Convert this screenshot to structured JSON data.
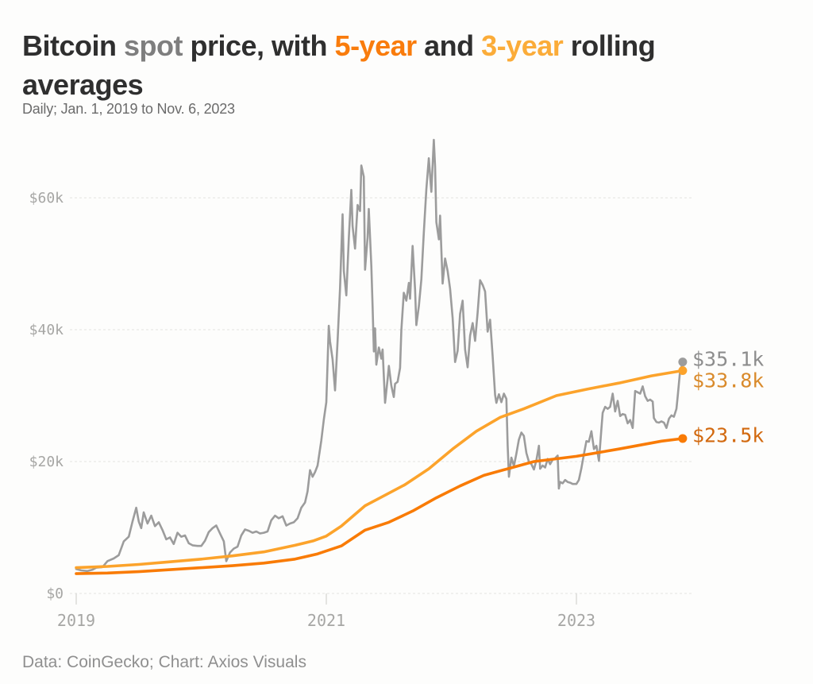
{
  "title": {
    "lines": [
      [
        {
          "text": "Bitcoin ",
          "color": "#2F2F2F"
        },
        {
          "text": "spot",
          "color": "#7E7E7E"
        },
        {
          "text": " price, with ",
          "color": "#2F2F2F"
        },
        {
          "text": "5-year",
          "color": "#F97C0C"
        },
        {
          "text": " and ",
          "color": "#2F2F2F"
        },
        {
          "text": "3-year",
          "color": "#FBAC39"
        },
        {
          "text": " rolling",
          "color": "#2F2F2F"
        }
      ],
      [
        {
          "text": "averages",
          "color": "#2F2F2F"
        }
      ]
    ]
  },
  "subtitle": "Daily; Jan. 1, 2019 to Nov. 6, 2023",
  "footer": "Data: CoinGecko; Chart: Axios Visuals",
  "colors": {
    "background": "#FDFDFC",
    "gridline": "#E8E8E5",
    "axis_label": "#A6A6A4",
    "tick": "#DBDBD8",
    "spot": "#9C9C9C",
    "three_year": "#FCA32B",
    "five_year": "#F97B05"
  },
  "chart_data": {
    "type": "line",
    "title": "Bitcoin spot price, with 5-year and 3-year rolling averages",
    "subtitle": "Daily; Jan. 1, 2019 to Nov. 6, 2023",
    "source": "Data: CoinGecko; Chart: Axios Visuals",
    "x_unit": "year (decimal date)",
    "y_unit": "USD thousands",
    "xlim": [
      2019.0,
      2023.92
    ],
    "ylim": [
      0,
      69
    ],
    "grid": "horizontal dashed, on",
    "legend": "inline in title (colored words)",
    "x_ticks": [
      {
        "value": 2019,
        "label": "2019"
      },
      {
        "value": 2021,
        "label": "2021"
      },
      {
        "value": 2023,
        "label": "2023"
      }
    ],
    "y_ticks": [
      {
        "value": 0,
        "label": "$0"
      },
      {
        "value": 20,
        "label": "$20k"
      },
      {
        "value": 40,
        "label": "$40k"
      },
      {
        "value": 60,
        "label": "$60k"
      }
    ],
    "series": [
      {
        "id": "spot",
        "name": "Bitcoin spot price (daily)",
        "color": "#9C9C9C",
        "label_color": "#8D8D8D",
        "width": 2.6,
        "end_label": "$35.1k",
        "end_value_k": 35.1,
        "points": [
          [
            2019.0,
            3.7
          ],
          [
            2019.04,
            3.5
          ],
          [
            2019.09,
            3.4
          ],
          [
            2019.13,
            3.6
          ],
          [
            2019.16,
            3.9
          ],
          [
            2019.21,
            4.0
          ],
          [
            2019.25,
            4.9
          ],
          [
            2019.3,
            5.3
          ],
          [
            2019.34,
            5.8
          ],
          [
            2019.38,
            7.9
          ],
          [
            2019.42,
            8.6
          ],
          [
            2019.45,
            10.9
          ],
          [
            2019.48,
            13.0
          ],
          [
            2019.5,
            10.9
          ],
          [
            2019.52,
            9.9
          ],
          [
            2019.54,
            12.3
          ],
          [
            2019.57,
            10.6
          ],
          [
            2019.6,
            11.8
          ],
          [
            2019.63,
            10.2
          ],
          [
            2019.66,
            10.8
          ],
          [
            2019.69,
            9.6
          ],
          [
            2019.72,
            8.2
          ],
          [
            2019.75,
            8.5
          ],
          [
            2019.78,
            7.5
          ],
          [
            2019.81,
            9.2
          ],
          [
            2019.84,
            8.6
          ],
          [
            2019.87,
            8.8
          ],
          [
            2019.9,
            7.6
          ],
          [
            2019.93,
            7.3
          ],
          [
            2019.97,
            7.2
          ],
          [
            2020.0,
            7.2
          ],
          [
            2020.03,
            8.0
          ],
          [
            2020.06,
            9.3
          ],
          [
            2020.09,
            9.9
          ],
          [
            2020.12,
            10.3
          ],
          [
            2020.15,
            9.1
          ],
          [
            2020.18,
            7.9
          ],
          [
            2020.2,
            4.9
          ],
          [
            2020.23,
            6.2
          ],
          [
            2020.26,
            6.8
          ],
          [
            2020.29,
            7.1
          ],
          [
            2020.32,
            8.8
          ],
          [
            2020.35,
            9.7
          ],
          [
            2020.38,
            9.5
          ],
          [
            2020.41,
            9.2
          ],
          [
            2020.44,
            9.4
          ],
          [
            2020.47,
            9.1
          ],
          [
            2020.5,
            9.2
          ],
          [
            2020.53,
            9.4
          ],
          [
            2020.56,
            11.1
          ],
          [
            2020.59,
            11.8
          ],
          [
            2020.62,
            11.4
          ],
          [
            2020.65,
            11.7
          ],
          [
            2020.68,
            10.3
          ],
          [
            2020.71,
            10.6
          ],
          [
            2020.74,
            10.8
          ],
          [
            2020.77,
            11.4
          ],
          [
            2020.8,
            13.0
          ],
          [
            2020.83,
            13.8
          ],
          [
            2020.85,
            15.5
          ],
          [
            2020.87,
            18.7
          ],
          [
            2020.89,
            17.7
          ],
          [
            2020.91,
            18.4
          ],
          [
            2020.93,
            19.4
          ],
          [
            2020.96,
            23.2
          ],
          [
            2020.98,
            26.4
          ],
          [
            2021.0,
            29.0
          ],
          [
            2021.02,
            40.6
          ],
          [
            2021.03,
            38.2
          ],
          [
            2021.05,
            35.5
          ],
          [
            2021.07,
            30.8
          ],
          [
            2021.09,
            38.3
          ],
          [
            2021.11,
            46.3
          ],
          [
            2021.13,
            57.5
          ],
          [
            2021.14,
            48.9
          ],
          [
            2021.16,
            45.2
          ],
          [
            2021.18,
            54.0
          ],
          [
            2021.2,
            61.2
          ],
          [
            2021.21,
            55.7
          ],
          [
            2021.23,
            52.3
          ],
          [
            2021.25,
            58.9
          ],
          [
            2021.27,
            58.0
          ],
          [
            2021.28,
            64.9
          ],
          [
            2021.3,
            63.2
          ],
          [
            2021.31,
            49.1
          ],
          [
            2021.33,
            54.0
          ],
          [
            2021.34,
            58.3
          ],
          [
            2021.36,
            49.7
          ],
          [
            2021.37,
            43.5
          ],
          [
            2021.38,
            36.7
          ],
          [
            2021.39,
            40.2
          ],
          [
            2021.4,
            34.7
          ],
          [
            2021.42,
            37.3
          ],
          [
            2021.44,
            35.6
          ],
          [
            2021.45,
            37.0
          ],
          [
            2021.47,
            28.9
          ],
          [
            2021.49,
            32.5
          ],
          [
            2021.5,
            34.5
          ],
          [
            2021.52,
            31.5
          ],
          [
            2021.54,
            29.8
          ],
          [
            2021.55,
            31.8
          ],
          [
            2021.57,
            32.1
          ],
          [
            2021.59,
            34.2
          ],
          [
            2021.6,
            39.9
          ],
          [
            2021.62,
            45.6
          ],
          [
            2021.64,
            44.4
          ],
          [
            2021.66,
            47.1
          ],
          [
            2021.67,
            44.7
          ],
          [
            2021.69,
            52.7
          ],
          [
            2021.71,
            46.1
          ],
          [
            2021.72,
            40.7
          ],
          [
            2021.74,
            43.6
          ],
          [
            2021.76,
            47.6
          ],
          [
            2021.78,
            54.7
          ],
          [
            2021.8,
            61.3
          ],
          [
            2021.82,
            66.0
          ],
          [
            2021.84,
            60.9
          ],
          [
            2021.86,
            68.8
          ],
          [
            2021.87,
            64.8
          ],
          [
            2021.88,
            56.3
          ],
          [
            2021.9,
            53.7
          ],
          [
            2021.91,
            57.3
          ],
          [
            2021.93,
            47.0
          ],
          [
            2021.95,
            50.8
          ],
          [
            2021.97,
            48.9
          ],
          [
            2021.99,
            46.2
          ],
          [
            2022.01,
            41.8
          ],
          [
            2022.03,
            35.1
          ],
          [
            2022.05,
            36.8
          ],
          [
            2022.07,
            42.4
          ],
          [
            2022.09,
            44.4
          ],
          [
            2022.11,
            37.0
          ],
          [
            2022.13,
            34.3
          ],
          [
            2022.15,
            39.1
          ],
          [
            2022.17,
            41.0
          ],
          [
            2022.19,
            38.3
          ],
          [
            2022.21,
            42.6
          ],
          [
            2022.23,
            47.5
          ],
          [
            2022.25,
            46.8
          ],
          [
            2022.27,
            45.8
          ],
          [
            2022.29,
            39.7
          ],
          [
            2022.31,
            41.5
          ],
          [
            2022.33,
            36.0
          ],
          [
            2022.35,
            30.1
          ],
          [
            2022.36,
            28.9
          ],
          [
            2022.38,
            30.2
          ],
          [
            2022.4,
            29.0
          ],
          [
            2022.42,
            30.3
          ],
          [
            2022.44,
            29.5
          ],
          [
            2022.45,
            22.5
          ],
          [
            2022.46,
            17.7
          ],
          [
            2022.48,
            20.6
          ],
          [
            2022.5,
            19.3
          ],
          [
            2022.52,
            21.2
          ],
          [
            2022.54,
            23.3
          ],
          [
            2022.56,
            24.4
          ],
          [
            2022.58,
            23.9
          ],
          [
            2022.6,
            21.3
          ],
          [
            2022.62,
            20.0
          ],
          [
            2022.64,
            19.6
          ],
          [
            2022.66,
            18.8
          ],
          [
            2022.68,
            20.2
          ],
          [
            2022.7,
            22.4
          ],
          [
            2022.71,
            18.9
          ],
          [
            2022.73,
            19.4
          ],
          [
            2022.75,
            19.1
          ],
          [
            2022.77,
            20.4
          ],
          [
            2022.79,
            19.6
          ],
          [
            2022.81,
            20.3
          ],
          [
            2022.83,
            20.5
          ],
          [
            2022.85,
            20.9
          ],
          [
            2022.86,
            15.9
          ],
          [
            2022.87,
            16.9
          ],
          [
            2022.89,
            16.7
          ],
          [
            2022.91,
            17.2
          ],
          [
            2022.93,
            16.9
          ],
          [
            2022.95,
            16.8
          ],
          [
            2022.97,
            16.6
          ],
          [
            2023.0,
            16.6
          ],
          [
            2023.02,
            17.2
          ],
          [
            2023.04,
            19.0
          ],
          [
            2023.06,
            21.1
          ],
          [
            2023.08,
            23.1
          ],
          [
            2023.1,
            23.0
          ],
          [
            2023.12,
            24.6
          ],
          [
            2023.14,
            21.9
          ],
          [
            2023.16,
            22.4
          ],
          [
            2023.18,
            20.1
          ],
          [
            2023.2,
            25.0
          ],
          [
            2023.21,
            27.4
          ],
          [
            2023.23,
            28.3
          ],
          [
            2023.25,
            28.0
          ],
          [
            2023.27,
            28.3
          ],
          [
            2023.29,
            30.3
          ],
          [
            2023.31,
            27.6
          ],
          [
            2023.33,
            29.2
          ],
          [
            2023.35,
            26.9
          ],
          [
            2023.37,
            27.2
          ],
          [
            2023.39,
            27.1
          ],
          [
            2023.41,
            25.8
          ],
          [
            2023.43,
            26.3
          ],
          [
            2023.45,
            25.1
          ],
          [
            2023.47,
            30.7
          ],
          [
            2023.49,
            30.5
          ],
          [
            2023.51,
            30.3
          ],
          [
            2023.53,
            31.4
          ],
          [
            2023.55,
            29.9
          ],
          [
            2023.57,
            29.2
          ],
          [
            2023.59,
            29.4
          ],
          [
            2023.61,
            29.1
          ],
          [
            2023.62,
            26.6
          ],
          [
            2023.64,
            26.0
          ],
          [
            2023.66,
            25.9
          ],
          [
            2023.68,
            26.1
          ],
          [
            2023.7,
            25.9
          ],
          [
            2023.72,
            25.1
          ],
          [
            2023.74,
            26.5
          ],
          [
            2023.76,
            27.0
          ],
          [
            2023.78,
            26.8
          ],
          [
            2023.8,
            28.0
          ],
          [
            2023.81,
            29.9
          ],
          [
            2023.83,
            33.9
          ],
          [
            2023.84,
            34.3
          ],
          [
            2023.85,
            35.1
          ]
        ]
      },
      {
        "id": "three-year-avg",
        "name": "3-year rolling average",
        "color": "#FCA32B",
        "label_color": "#D98A2B",
        "width": 3.6,
        "end_label": "$33.8k",
        "end_value_k": 33.8,
        "points": [
          [
            2019.0,
            3.9
          ],
          [
            2019.25,
            4.1
          ],
          [
            2019.5,
            4.4
          ],
          [
            2019.75,
            4.8
          ],
          [
            2020.0,
            5.2
          ],
          [
            2020.25,
            5.7
          ],
          [
            2020.5,
            6.3
          ],
          [
            2020.75,
            7.3
          ],
          [
            2020.9,
            8.0
          ],
          [
            2021.0,
            8.7
          ],
          [
            2021.12,
            10.2
          ],
          [
            2021.31,
            13.3
          ],
          [
            2021.44,
            14.6
          ],
          [
            2021.63,
            16.5
          ],
          [
            2021.82,
            18.9
          ],
          [
            2022.01,
            21.9
          ],
          [
            2022.2,
            24.6
          ],
          [
            2022.39,
            26.7
          ],
          [
            2022.58,
            28.0
          ],
          [
            2022.84,
            30.0
          ],
          [
            2023.09,
            31.0
          ],
          [
            2023.34,
            31.9
          ],
          [
            2023.6,
            33.0
          ],
          [
            2023.85,
            33.8
          ]
        ]
      },
      {
        "id": "five-year-avg",
        "name": "5-year rolling average",
        "color": "#F97B05",
        "label_color": "#D2690F",
        "width": 3.6,
        "end_label": "$23.5k",
        "end_value_k": 23.5,
        "points": [
          [
            2019.0,
            3.0
          ],
          [
            2019.25,
            3.1
          ],
          [
            2019.5,
            3.3
          ],
          [
            2019.75,
            3.6
          ],
          [
            2020.0,
            3.9
          ],
          [
            2020.25,
            4.2
          ],
          [
            2020.5,
            4.6
          ],
          [
            2020.75,
            5.2
          ],
          [
            2020.93,
            6.0
          ],
          [
            2021.12,
            7.2
          ],
          [
            2021.31,
            9.6
          ],
          [
            2021.5,
            10.8
          ],
          [
            2021.69,
            12.5
          ],
          [
            2021.88,
            14.5
          ],
          [
            2022.07,
            16.3
          ],
          [
            2022.26,
            17.9
          ],
          [
            2022.45,
            18.9
          ],
          [
            2022.66,
            20.0
          ],
          [
            2023.0,
            20.8
          ],
          [
            2023.34,
            21.9
          ],
          [
            2023.68,
            23.1
          ],
          [
            2023.85,
            23.5
          ]
        ]
      }
    ]
  }
}
